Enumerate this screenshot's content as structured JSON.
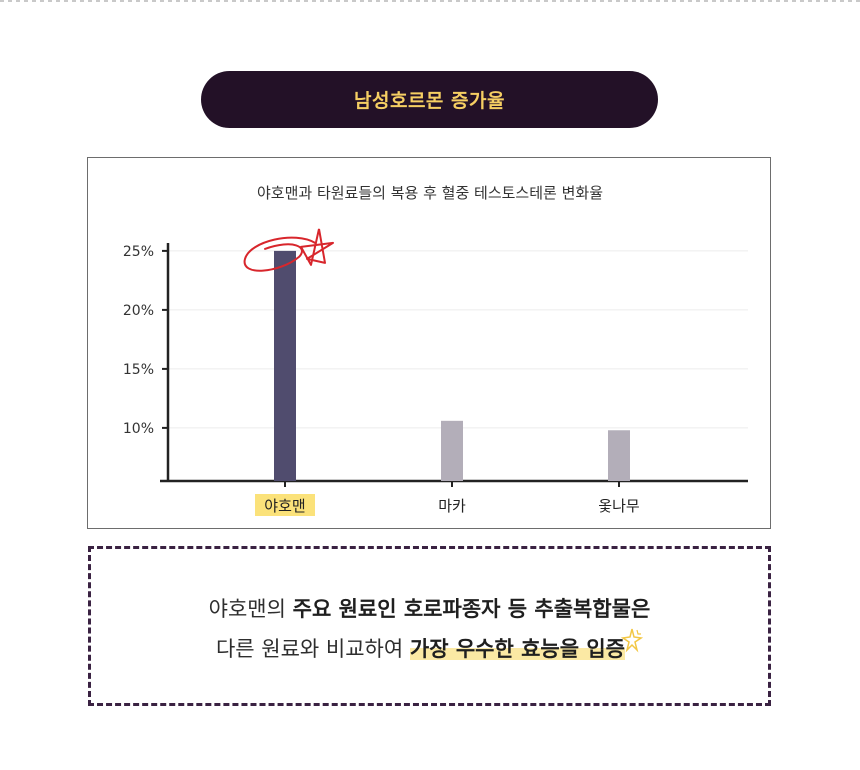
{
  "header": {
    "title": "남성호르몬 증가율"
  },
  "chart_data": {
    "type": "bar",
    "title": "야호맨과 타원료들의 복용 후 혈중 테스토스테론 변화율",
    "categories": [
      "야호맨",
      "마카",
      "옻나무"
    ],
    "values": [
      25,
      10.6,
      9.8
    ],
    "ylim": [
      5.5,
      25.5
    ],
    "yticks": [
      "25%",
      "20%",
      "15%",
      "10%"
    ],
    "ytick_values": [
      25,
      20,
      15,
      10
    ],
    "grid": true,
    "colors": {
      "highlight": "#504c6e",
      "other": "#b3aeb9",
      "label_highlight": "#fbe27a",
      "scribble": "#d8262c"
    },
    "highlight_index": 0
  },
  "note": {
    "line1": {
      "plain1": "야호맨의 ",
      "bold1": "주요 원료인 호로파종자 등 추출복합물은"
    },
    "line2": {
      "plain1": "다른 원료와 비교하여 ",
      "highlight": "가장 우수한 효능을 입증"
    }
  }
}
